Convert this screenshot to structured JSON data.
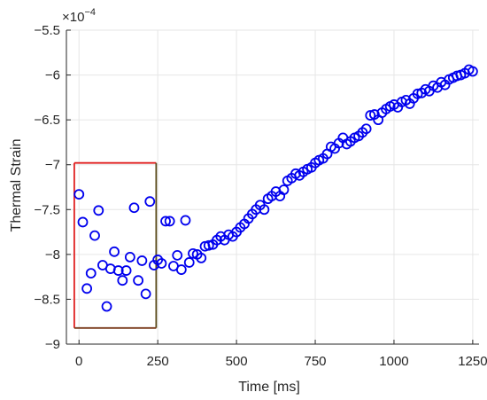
{
  "chart_data": {
    "type": "scatter",
    "xlabel": "Time [ms]",
    "ylabel": "Thermal Strain",
    "y_exponent_label": "×10",
    "y_exponent_power": "−4",
    "xlim": [
      -40,
      1270
    ],
    "ylim": [
      -9,
      -5.5
    ],
    "xticks": [
      0,
      250,
      500,
      750,
      1000,
      1250
    ],
    "xtick_labels": [
      "0",
      "250",
      "500",
      "750",
      "1000",
      "1250"
    ],
    "yticks": [
      -9,
      -8.5,
      -8,
      -7.5,
      -7,
      -6.5,
      -6,
      -5.5
    ],
    "ytick_labels": [
      "−9",
      "−8.5",
      "−8",
      "−7.5",
      "−7",
      "−6.5",
      "−6",
      "−5.5"
    ],
    "grid": true,
    "marker": "circle",
    "marker_color": "#0000ee",
    "highlight_box": {
      "x_range": [
        -15,
        245
      ],
      "y_range": [
        -8.82,
        -6.98
      ],
      "color": "#e02020"
    },
    "series": [
      {
        "x": [
          0,
          12,
          25,
          38,
          50,
          62,
          75,
          88,
          100,
          112,
          125,
          138,
          150,
          162,
          175,
          188,
          200,
          212,
          225,
          238,
          250,
          262,
          275,
          288,
          300,
          312,
          325,
          338,
          350,
          362,
          375,
          388,
          400,
          412,
          425,
          438,
          450,
          462,
          475,
          488,
          500,
          512,
          525,
          538,
          550,
          562,
          575,
          588,
          600,
          612,
          625,
          638,
          650,
          662,
          675,
          688,
          700,
          712,
          725,
          738,
          750,
          762,
          775,
          788,
          800,
          812,
          825,
          838,
          850,
          862,
          875,
          888,
          900,
          912,
          925,
          938,
          950,
          962,
          975,
          988,
          1000,
          1012,
          1025,
          1038,
          1050,
          1062,
          1075,
          1088,
          1100,
          1112,
          1125,
          1138,
          1150,
          1162,
          1175,
          1188,
          1200,
          1212,
          1225,
          1238,
          1250
        ],
        "y": [
          -7.33,
          -7.64,
          -8.38,
          -8.21,
          -7.79,
          -7.51,
          -8.12,
          -8.58,
          -8.16,
          -7.97,
          -8.18,
          -8.29,
          -8.18,
          -8.03,
          -7.48,
          -8.29,
          -8.07,
          -8.44,
          -7.41,
          -8.12,
          -8.06,
          -8.1,
          -7.63,
          -7.63,
          -8.13,
          -8.01,
          -8.17,
          -7.62,
          -8.09,
          -7.99,
          -8.0,
          -8.04,
          -7.91,
          -7.9,
          -7.89,
          -7.84,
          -7.8,
          -7.84,
          -7.78,
          -7.8,
          -7.75,
          -7.7,
          -7.66,
          -7.6,
          -7.55,
          -7.5,
          -7.45,
          -7.5,
          -7.38,
          -7.35,
          -7.3,
          -7.35,
          -7.28,
          -7.18,
          -7.15,
          -7.1,
          -7.12,
          -7.08,
          -7.05,
          -7.03,
          -6.98,
          -6.95,
          -6.93,
          -6.88,
          -6.8,
          -6.82,
          -6.76,
          -6.7,
          -6.77,
          -6.74,
          -6.7,
          -6.68,
          -6.64,
          -6.6,
          -6.45,
          -6.44,
          -6.5,
          -6.42,
          -6.38,
          -6.35,
          -6.33,
          -6.36,
          -6.3,
          -6.28,
          -6.32,
          -6.26,
          -6.21,
          -6.2,
          -6.16,
          -6.18,
          -6.12,
          -6.14,
          -6.08,
          -6.11,
          -6.05,
          -6.03,
          -6.01,
          -6.0,
          -5.98,
          -5.94,
          -5.96
        ]
      }
    ]
  }
}
